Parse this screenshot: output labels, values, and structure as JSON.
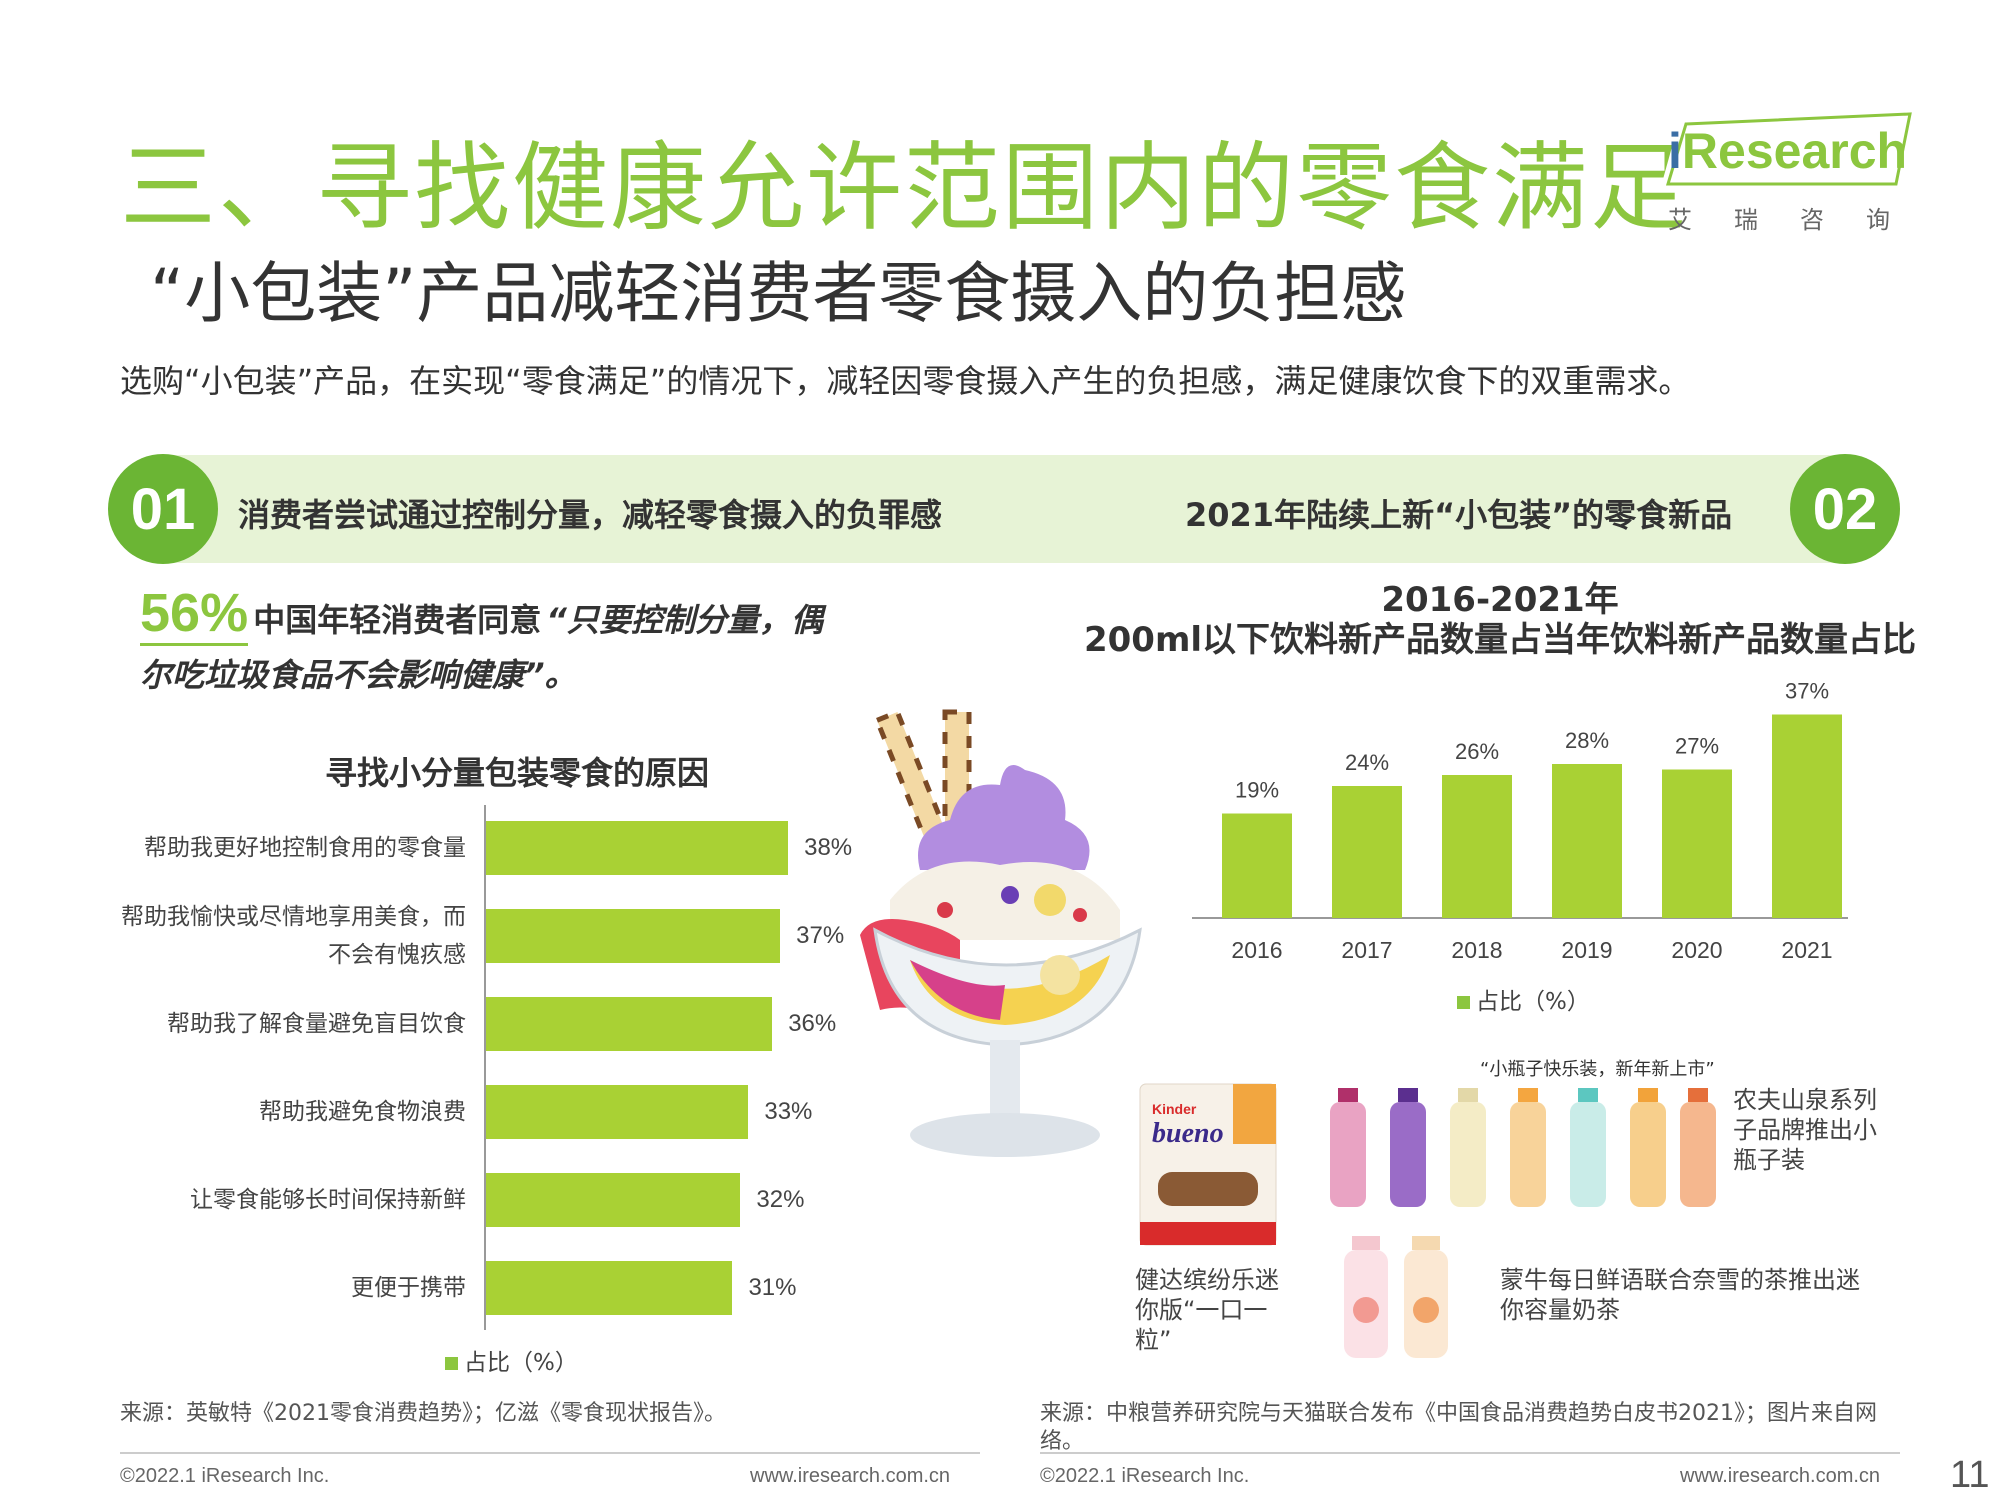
{
  "header": {
    "title": "三、寻找健康允许范围内的零食满足",
    "subtitle": "“小包装”产品减轻消费者零食摄入的负担感",
    "intro": "选购“小包装”产品，在实现“零食满足”的情况下，减轻因零食摄入产生的负担感，满足健康饮食下的双重需求。"
  },
  "logo": {
    "brand_i": "i",
    "brand_rest": "Research",
    "cn": "艾瑞咨询"
  },
  "banner": {
    "left_num": "01",
    "left_text": "消费者尝试通过控制分量，减轻零食摄入的负罪感",
    "right_text": "2021年陆续上新“小包装”的零食新品",
    "right_num": "02"
  },
  "stat": {
    "pct": "56%",
    "text": "中国年轻消费者同意",
    "quote_part1": "“只要控制分量，偶",
    "quote_part2": "尔吃垃圾食品不会影响健康”",
    "end": "。"
  },
  "left_chart": {
    "title": "寻找小分量包装零食的原因",
    "legend": "占比（%）",
    "accent": "#a9d134"
  },
  "right_chart": {
    "title_line1": "2016-2021年",
    "title_line2": "200ml以下饮料新产品数量占当年饮料新产品数量占比",
    "legend": "占比（%）",
    "accent": "#a9d134"
  },
  "chart_data": [
    {
      "type": "bar",
      "orientation": "horizontal",
      "title": "寻找小分量包装零食的原因",
      "categories": [
        "帮助我更好地控制食用的零食量",
        "帮助我愉快或尽情地享用美食，而不会有愧疚感",
        "帮助我了解食量避免盲目饮食",
        "帮助我避免食物浪费",
        "让零食能够长时间保持新鲜",
        "更便于携带"
      ],
      "label_lines": [
        [
          "帮助我更好地控制食用的零食量"
        ],
        [
          "帮助我愉快或尽情地享用美食，而",
          "不会有愧疚感"
        ],
        [
          "帮助我了解食量避免盲目饮食"
        ],
        [
          "帮助我避免食物浪费"
        ],
        [
          "让零食能够长时间保持新鲜"
        ],
        [
          "更便于携带"
        ]
      ],
      "values": [
        38,
        37,
        36,
        33,
        32,
        31
      ],
      "value_labels": [
        "38%",
        "37%",
        "36%",
        "33%",
        "32%",
        "31%"
      ],
      "legend": "占比（%）",
      "xlim": [
        0,
        40
      ]
    },
    {
      "type": "bar",
      "title": "2016-2021年 200ml以下饮料新产品数量占当年饮料新产品数量占比",
      "categories": [
        "2016",
        "2017",
        "2018",
        "2019",
        "2020",
        "2021"
      ],
      "values": [
        19,
        24,
        26,
        28,
        27,
        37
      ],
      "value_labels": [
        "19%",
        "24%",
        "26%",
        "28%",
        "27%",
        "37%"
      ],
      "legend": "占比（%）",
      "ylim": [
        0,
        40
      ]
    }
  ],
  "products": {
    "bottles_title": "“小瓶子快乐装，新年新上市”",
    "nongfu_caption": "农夫山泉系列子品牌推出小瓶子装",
    "kinder_caption": "健达缤纷乐迷你版“一口一粒”",
    "mengniu_caption": "蒙牛每日鲜语联合奈雪的茶推出迷你容量奶茶",
    "kinder_logo": "Kinder",
    "bueno_text": "bueno"
  },
  "sources": {
    "left": "来源：英敏特《2021零食消费趋势》；亿滋《零食现状报告》。",
    "right_line1": "来源：中粮营养研究院与天猫联合发布《中国食品消费趋势白皮书2021》；图片来自网",
    "right_line2": "络。"
  },
  "footer": {
    "copyright": "©2022.1 iResearch Inc.",
    "website": "www.iresearch.com.cn",
    "page": "11"
  }
}
